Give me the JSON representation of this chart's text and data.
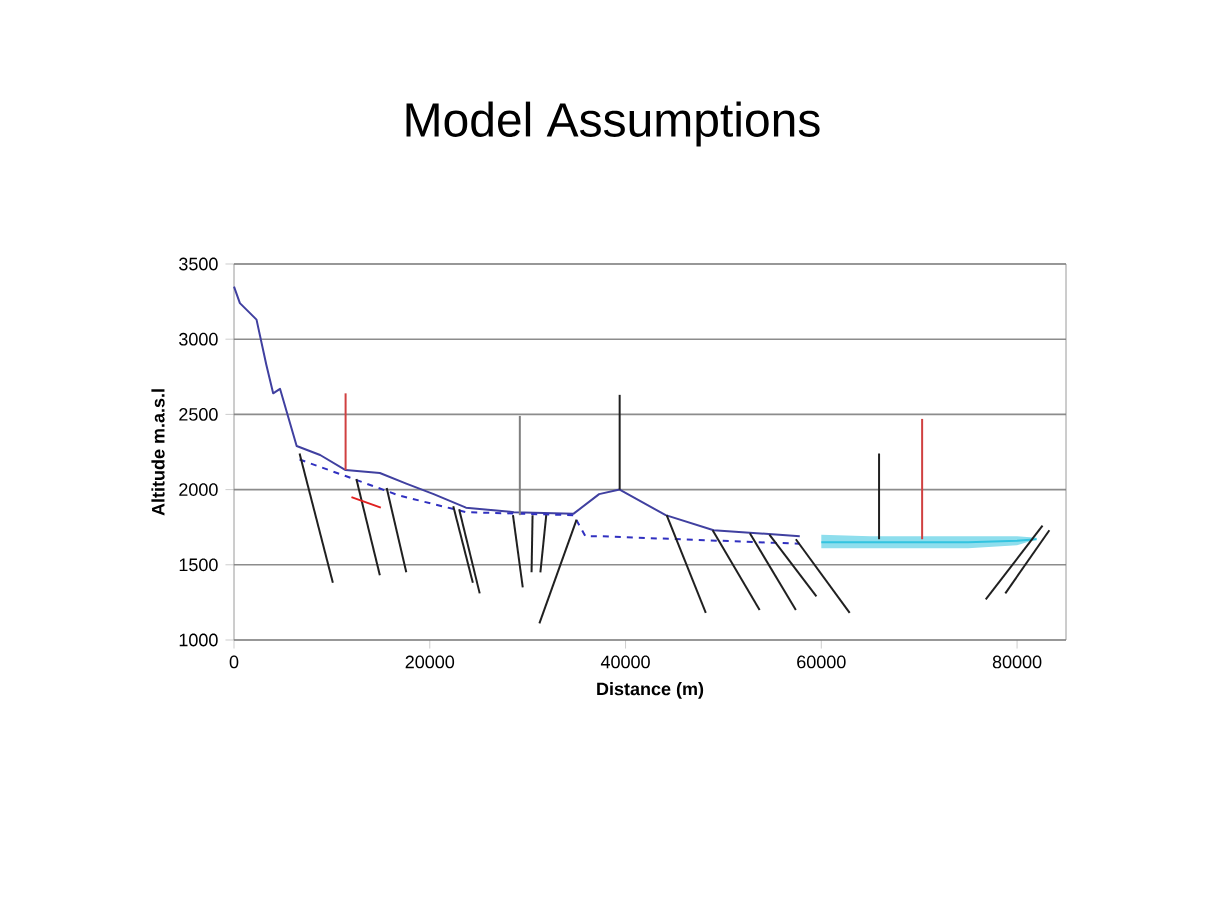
{
  "chart_data": {
    "type": "line",
    "title": "Model Assumptions",
    "xlabel": "Distance (m)",
    "ylabel": "Altitude m.a.s.l",
    "xlim": [
      0,
      85000
    ],
    "ylim": [
      1000,
      3500
    ],
    "xticks": [
      0,
      20000,
      40000,
      60000,
      80000
    ],
    "yticks": [
      1000,
      1500,
      2000,
      2500,
      3000,
      3500
    ],
    "grid": "y",
    "series": [
      {
        "color": "#33c4e0",
        "x": [
          60000,
          65000,
          70000,
          75000,
          80000,
          82000
        ],
        "values": [
          1650,
          1650,
          1650,
          1650,
          1660,
          1670
        ],
        "lower": [
          1610,
          1610,
          1610,
          1610,
          1630,
          1670
        ],
        "upper": [
          1700,
          1690,
          1690,
          1690,
          1690,
          1680
        ]
      },
      {
        "color": "#4040a0",
        "x": [
          0,
          600,
          2300,
          3300,
          4000,
          4700,
          6400,
          8800,
          11400,
          14900,
          17600,
          20400,
          23700,
          28600,
          34700,
          37300,
          39400,
          44100,
          49000,
          57800
        ],
        "values": [
          3350,
          3240,
          3130,
          2830,
          2640,
          2670,
          2290,
          2230,
          2130,
          2110,
          2040,
          1970,
          1880,
          1850,
          1840,
          1970,
          2000,
          1830,
          1730,
          1690
        ]
      },
      {
        "color": "#3030c0",
        "line_style": "dashed",
        "x": [
          6700,
          11400,
          16900,
          23700,
          34700,
          35900,
          37300,
          57800
        ],
        "values": [
          2200,
          2090,
          1960,
          1850,
          1830,
          1690,
          1690,
          1640
        ]
      },
      {
        "color": "#202020",
        "x": [
          6700,
          10100
        ],
        "values": [
          2240,
          1380
        ]
      },
      {
        "color": "#202020",
        "x": [
          12500,
          14900
        ],
        "values": [
          2070,
          1430
        ]
      },
      {
        "color": "#202020",
        "x": [
          15600,
          17600
        ],
        "values": [
          2010,
          1450
        ]
      },
      {
        "color": "#202020",
        "x": [
          22400,
          24400
        ],
        "values": [
          1890,
          1380
        ]
      },
      {
        "color": "#202020",
        "x": [
          23000,
          25100
        ],
        "values": [
          1870,
          1310
        ]
      },
      {
        "color": "#202020",
        "x": [
          28500,
          29500
        ],
        "values": [
          1830,
          1350
        ]
      },
      {
        "color": "#202020",
        "x": [
          30500,
          30400
        ],
        "values": [
          1830,
          1450
        ]
      },
      {
        "color": "#202020",
        "x": [
          31900,
          31300
        ],
        "values": [
          1830,
          1450
        ]
      },
      {
        "color": "#202020",
        "x": [
          35000,
          31200
        ],
        "values": [
          1800,
          1110
        ]
      },
      {
        "color": "#202020",
        "x": [
          44200,
          48200
        ],
        "values": [
          1830,
          1180
        ]
      },
      {
        "color": "#202020",
        "x": [
          48900,
          53700
        ],
        "values": [
          1730,
          1200
        ]
      },
      {
        "color": "#202020",
        "x": [
          52700,
          57400
        ],
        "values": [
          1710,
          1200
        ]
      },
      {
        "color": "#202020",
        "x": [
          54700,
          59500
        ],
        "values": [
          1700,
          1290
        ]
      },
      {
        "color": "#202020",
        "x": [
          57400,
          62900
        ],
        "values": [
          1670,
          1180
        ]
      },
      {
        "color": "#202020",
        "x": [
          82600,
          76800
        ],
        "values": [
          1760,
          1270
        ]
      },
      {
        "color": "#202020",
        "x": [
          83300,
          78800
        ],
        "values": [
          1730,
          1310
        ]
      },
      {
        "color": "#d04040",
        "x": [
          11400,
          11400
        ],
        "values": [
          2640,
          2130
        ]
      },
      {
        "color": "#808080",
        "x": [
          29200,
          29200
        ],
        "values": [
          2490,
          1830
        ]
      },
      {
        "color": "#202020",
        "x": [
          39400,
          39400
        ],
        "values": [
          2630,
          2000
        ]
      },
      {
        "color": "#202020",
        "x": [
          65900,
          65900
        ],
        "values": [
          2240,
          1670
        ]
      },
      {
        "color": "#d04040",
        "x": [
          70300,
          70300
        ],
        "values": [
          2470,
          1670
        ]
      },
      {
        "color": "#e02020",
        "x": [
          12000,
          15000
        ],
        "values": [
          1950,
          1880
        ]
      }
    ]
  }
}
